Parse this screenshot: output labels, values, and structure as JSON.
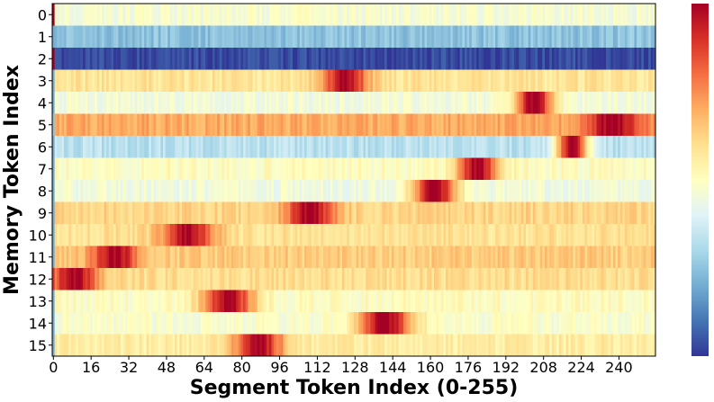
{
  "chart_data": {
    "type": "heatmap",
    "title": "",
    "xlabel": "Segment Token Index (0-255)",
    "ylabel": "Memory Token Index",
    "x_range": [
      0,
      255
    ],
    "x_ticks": [
      0,
      16,
      32,
      48,
      64,
      80,
      96,
      112,
      128,
      144,
      160,
      176,
      192,
      208,
      224,
      240
    ],
    "rows": [
      0,
      1,
      2,
      3,
      4,
      5,
      6,
      7,
      8,
      9,
      10,
      11,
      12,
      13,
      14,
      15
    ],
    "colormap": "RdYlBu_r",
    "colormap_stops": [
      "#313695",
      "#4575b4",
      "#74add1",
      "#abd9e9",
      "#e0f3f8",
      "#ffffbf",
      "#fee090",
      "#fdae61",
      "#f46d43",
      "#d73027",
      "#a50026"
    ],
    "colorbar": true,
    "row_baseline": [
      0.47,
      0.25,
      0.03,
      0.58,
      0.46,
      0.7,
      0.33,
      0.5,
      0.45,
      0.62,
      0.59,
      0.64,
      0.6,
      0.5,
      0.48,
      0.56
    ],
    "row_peak_center": [
      null,
      null,
      null,
      124,
      204,
      238,
      220,
      180,
      162,
      109,
      57,
      26,
      9,
      74,
      141,
      87
    ],
    "row_peak_width": [
      null,
      null,
      null,
      14,
      12,
      18,
      10,
      13,
      14,
      15,
      16,
      14,
      14,
      16,
      17,
      15
    ],
    "first_column_values": [
      1.0,
      0.2,
      1.0,
      0.2,
      0.2,
      0.25,
      0.2,
      0.2,
      0.2,
      0.2,
      0.2,
      0.2,
      0.9,
      0.2,
      0.2,
      0.2
    ]
  }
}
